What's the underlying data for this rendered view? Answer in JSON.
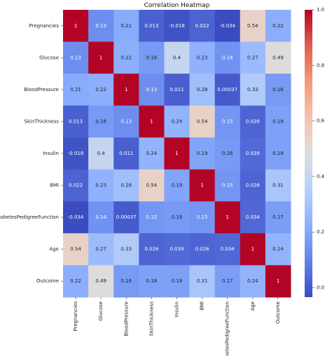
{
  "chart_data": {
    "type": "heatmap",
    "title": "Correlation Heatmap",
    "labels": [
      "Pregnancies",
      "Glucose",
      "BloodPressure",
      "SkinThickness",
      "Insulin",
      "BMI",
      "DiabetesPedigreeFunction",
      "Age",
      "Outcome"
    ],
    "values": [
      [
        1,
        0.13,
        0.21,
        0.013,
        -0.018,
        0.022,
        -0.034,
        0.54,
        0.22
      ],
      [
        0.13,
        1,
        0.22,
        0.16,
        0.4,
        0.23,
        0.14,
        0.27,
        0.49
      ],
      [
        0.21,
        0.22,
        1,
        0.13,
        0.011,
        0.28,
        0.00037,
        0.33,
        0.16
      ],
      [
        0.013,
        0.16,
        0.13,
        1,
        0.24,
        0.54,
        0.15,
        0.026,
        0.18
      ],
      [
        -0.018,
        0.4,
        0.011,
        0.24,
        1,
        0.19,
        0.16,
        0.039,
        0.18
      ],
      [
        0.022,
        0.23,
        0.28,
        0.54,
        0.19,
        1,
        0.15,
        0.026,
        0.31
      ],
      [
        -0.034,
        0.14,
        0.00037,
        0.15,
        0.16,
        0.15,
        1,
        0.034,
        0.17
      ],
      [
        0.54,
        0.27,
        0.33,
        0.026,
        0.039,
        0.026,
        0.034,
        1,
        0.24
      ],
      [
        0.22,
        0.49,
        0.16,
        0.18,
        0.18,
        0.31,
        0.17,
        0.24,
        1
      ]
    ],
    "value_labels": [
      [
        "1",
        "0.13",
        "0.21",
        "0.013",
        "-0.018",
        "0.022",
        "-0.034",
        "0.54",
        "0.22"
      ],
      [
        "0.13",
        "1",
        "0.22",
        "0.16",
        "0.4",
        "0.23",
        "0.14",
        "0.27",
        "0.49"
      ],
      [
        "0.21",
        "0.22",
        "1",
        "0.13",
        "0.011",
        "0.28",
        "0.00037",
        "0.33",
        "0.16"
      ],
      [
        "0.013",
        "0.16",
        "0.13",
        "1",
        "0.24",
        "0.54",
        "0.15",
        "0.026",
        "0.18"
      ],
      [
        "-0.018",
        "0.4",
        "0.011",
        "0.24",
        "1",
        "0.19",
        "0.16",
        "0.039",
        "0.18"
      ],
      [
        "0.022",
        "0.23",
        "0.28",
        "0.54",
        "0.19",
        "1",
        "0.15",
        "0.026",
        "0.31"
      ],
      [
        "-0.034",
        "0.14",
        "0.00037",
        "0.15",
        "0.16",
        "0.15",
        "1",
        "0.034",
        "0.17"
      ],
      [
        "0.54",
        "0.27",
        "0.33",
        "0.026",
        "0.039",
        "0.026",
        "0.034",
        "1",
        "0.24"
      ],
      [
        "0.22",
        "0.49",
        "0.16",
        "0.18",
        "0.18",
        "0.31",
        "0.17",
        "0.24",
        "1"
      ]
    ],
    "colormap": "coolwarm",
    "vmin": -0.034,
    "vmax": 1,
    "colorbar_ticks": [
      0.0,
      0.2,
      0.4,
      0.6,
      0.8,
      1.0
    ],
    "colorbar_tick_labels": [
      "0.0",
      "0.2",
      "0.4",
      "0.6",
      "0.8",
      "1.0"
    ],
    "legend": "colorbar-right"
  }
}
